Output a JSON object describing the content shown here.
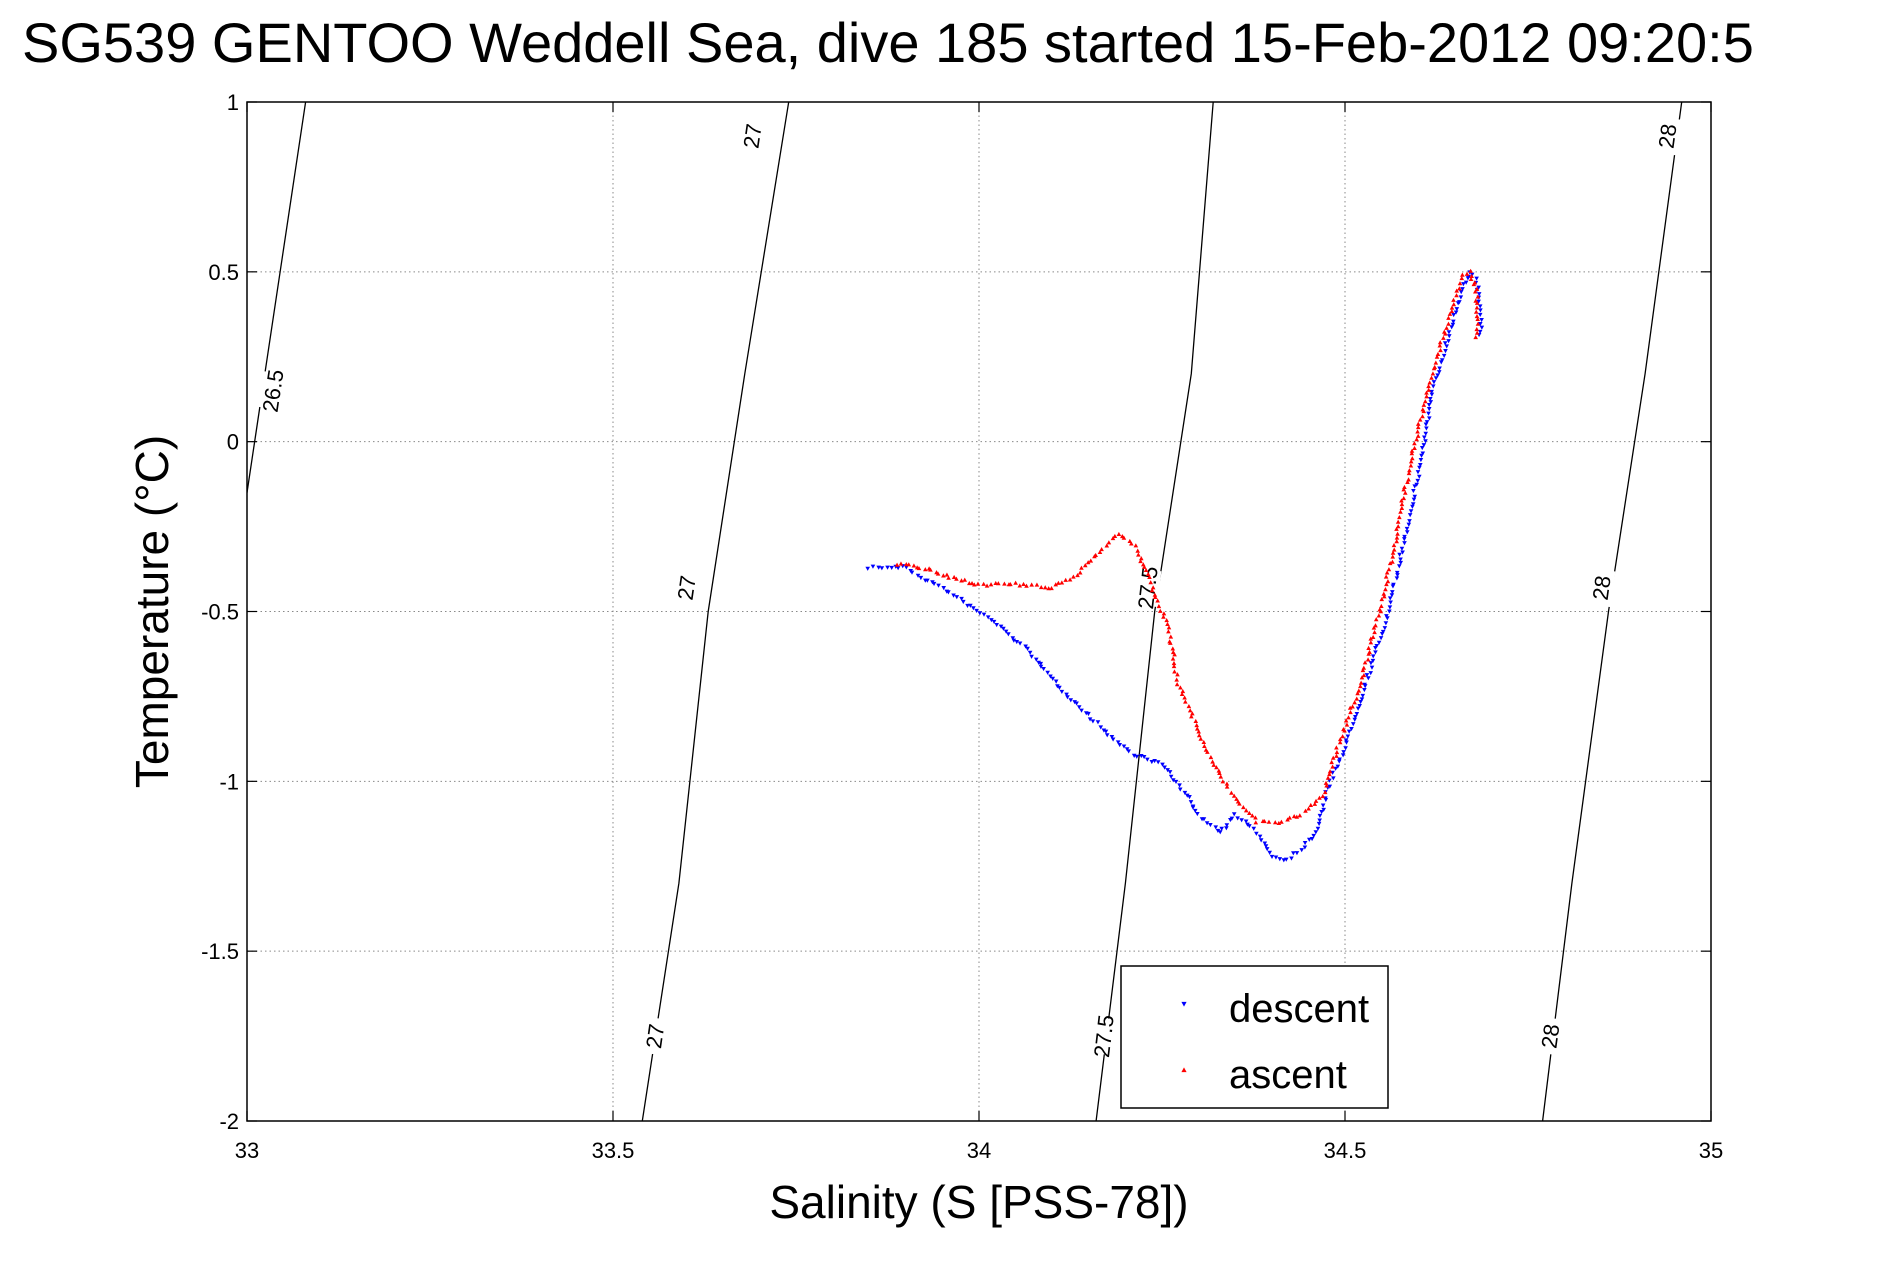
{
  "chart_data": {
    "type": "scatter",
    "title": "SG539 GENTOO Weddell Sea, dive 185 started 15-Feb-2012 09:20:5",
    "xlabel": "Salinity (S [PSS-78])",
    "ylabel": "Temperature (°C)",
    "xlim": [
      33,
      35
    ],
    "ylim": [
      -2,
      1
    ],
    "x_ticks": [
      {
        "value": 33,
        "label": "33"
      },
      {
        "value": 33.5,
        "label": "33.5"
      },
      {
        "value": 34,
        "label": "34"
      },
      {
        "value": 34.5,
        "label": "34.5"
      },
      {
        "value": 35,
        "label": "35"
      }
    ],
    "y_ticks": [
      {
        "value": 1,
        "label": "1"
      },
      {
        "value": 0.5,
        "label": "0.5"
      },
      {
        "value": 0,
        "label": "0"
      },
      {
        "value": -0.5,
        "label": "-0.5"
      },
      {
        "value": -1,
        "label": "-1"
      },
      {
        "value": -1.5,
        "label": "-1.5"
      },
      {
        "value": -2,
        "label": "-2"
      }
    ],
    "grid": true,
    "grid_style": "dotted",
    "legend": {
      "placement": "bottom-center"
    },
    "contours": [
      {
        "level": "26.5",
        "points": [
          [
            33.0,
            -0.15
          ],
          [
            33.08,
            1.0
          ]
        ],
        "labels": [
          {
            "x": 33.035,
            "y": 0.15,
            "text": "26.5"
          }
        ]
      },
      {
        "level": "27",
        "points": [
          [
            33.54,
            -2.0
          ],
          [
            33.59,
            -1.3
          ],
          [
            33.63,
            -0.5
          ],
          [
            33.68,
            0.2
          ],
          [
            33.74,
            1.0
          ]
        ],
        "labels": [
          {
            "x": 33.6,
            "y": -0.43,
            "text": "27"
          },
          {
            "x": 33.69,
            "y": 0.9,
            "text": "27"
          },
          {
            "x": 33.557,
            "y": -1.75,
            "text": "27"
          }
        ]
      },
      {
        "level": "27.5",
        "points": [
          [
            34.16,
            -2.0
          ],
          [
            34.2,
            -1.3
          ],
          [
            34.24,
            -0.5
          ],
          [
            34.29,
            0.2
          ],
          [
            34.32,
            1.0
          ]
        ],
        "labels": [
          {
            "x": 34.23,
            "y": -0.43,
            "text": "27.5"
          },
          {
            "x": 34.17,
            "y": -1.75,
            "text": "27.5"
          }
        ]
      },
      {
        "level": "28",
        "points": [
          [
            34.77,
            -2.0
          ],
          [
            34.81,
            -1.3
          ],
          [
            34.86,
            -0.5
          ],
          [
            34.91,
            0.2
          ],
          [
            34.96,
            1.0
          ]
        ],
        "labels": [
          {
            "x": 34.85,
            "y": -0.43,
            "text": "28"
          },
          {
            "x": 34.78,
            "y": -1.75,
            "text": "28"
          },
          {
            "x": 34.94,
            "y": 0.9,
            "text": "28"
          }
        ]
      }
    ],
    "series": [
      {
        "name": "descent",
        "color": "#0000ff",
        "marker": "triangle-down",
        "path": [
          [
            33.85,
            -0.37
          ],
          [
            33.88,
            -0.37
          ],
          [
            33.9,
            -0.37
          ],
          [
            33.92,
            -0.4
          ],
          [
            33.95,
            -0.43
          ],
          [
            33.97,
            -0.46
          ],
          [
            34.02,
            -0.53
          ],
          [
            34.07,
            -0.62
          ],
          [
            34.1,
            -0.7
          ],
          [
            34.18,
            -0.87
          ],
          [
            34.21,
            -0.92
          ],
          [
            34.25,
            -0.95
          ],
          [
            34.28,
            -1.03
          ],
          [
            34.3,
            -1.1
          ],
          [
            34.33,
            -1.15
          ],
          [
            34.35,
            -1.1
          ],
          [
            34.38,
            -1.15
          ],
          [
            34.4,
            -1.22
          ],
          [
            34.42,
            -1.23
          ],
          [
            34.44,
            -1.2
          ],
          [
            34.46,
            -1.15
          ],
          [
            34.48,
            -1.0
          ],
          [
            34.5,
            -0.9
          ],
          [
            34.53,
            -0.7
          ],
          [
            34.56,
            -0.5
          ],
          [
            34.58,
            -0.3
          ],
          [
            34.6,
            -0.1
          ],
          [
            34.62,
            0.15
          ],
          [
            34.64,
            0.3
          ],
          [
            34.66,
            0.45
          ],
          [
            34.67,
            0.5
          ],
          [
            34.68,
            0.48
          ],
          [
            34.685,
            0.4
          ],
          [
            34.685,
            0.3
          ]
        ]
      },
      {
        "name": "ascent",
        "color": "#ff0000",
        "marker": "triangle-up",
        "path": [
          [
            33.89,
            -0.36
          ],
          [
            33.92,
            -0.37
          ],
          [
            33.96,
            -0.4
          ],
          [
            34.0,
            -0.42
          ],
          [
            34.05,
            -0.42
          ],
          [
            34.1,
            -0.43
          ],
          [
            34.13,
            -0.4
          ],
          [
            34.16,
            -0.33
          ],
          [
            34.19,
            -0.27
          ],
          [
            34.21,
            -0.3
          ],
          [
            34.23,
            -0.38
          ],
          [
            34.24,
            -0.45
          ],
          [
            34.26,
            -0.55
          ],
          [
            34.27,
            -0.7
          ],
          [
            34.29,
            -0.8
          ],
          [
            34.32,
            -0.95
          ],
          [
            34.35,
            -1.05
          ],
          [
            34.38,
            -1.12
          ],
          [
            34.41,
            -1.12
          ],
          [
            34.44,
            -1.1
          ],
          [
            34.47,
            -1.04
          ],
          [
            34.49,
            -0.9
          ],
          [
            34.52,
            -0.72
          ],
          [
            34.55,
            -0.48
          ],
          [
            34.57,
            -0.28
          ],
          [
            34.59,
            -0.05
          ],
          [
            34.61,
            0.12
          ],
          [
            34.63,
            0.28
          ],
          [
            34.65,
            0.42
          ],
          [
            34.66,
            0.49
          ],
          [
            34.67,
            0.5
          ],
          [
            34.68,
            0.45
          ],
          [
            34.68,
            0.3
          ]
        ]
      }
    ]
  }
}
